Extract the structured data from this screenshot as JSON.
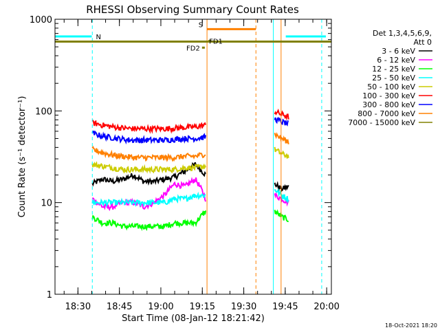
{
  "chart_data": {
    "type": "line",
    "title": "RHESSI Observing Summary Count Rates",
    "xlabel": "Start Time (08-Jan-12 18:21:42)",
    "ylabel": "Count Rate (s⁻¹ detector⁻¹)",
    "yscale": "log",
    "ylim": [
      1,
      1000
    ],
    "xlim": [
      0,
      100
    ],
    "x_ticks": [
      {
        "label": "18:30",
        "t": 8.3
      },
      {
        "label": "18:45",
        "t": 23.3
      },
      {
        "label": "19:00",
        "t": 38.3
      },
      {
        "label": "19:15",
        "t": 53.3
      },
      {
        "label": "19:30",
        "t": 68.3
      },
      {
        "label": "19:45",
        "t": 83.3
      },
      {
        "label": "20:00",
        "t": 98.3
      }
    ],
    "y_ticks": [
      {
        "label": "1",
        "v": 1
      },
      {
        "label": "10",
        "v": 10
      },
      {
        "label": "100",
        "v": 100
      },
      {
        "label": "1000",
        "v": 1000
      }
    ],
    "detector_info": [
      "Det 1,3,4,5,6,9,",
      "Att 0"
    ],
    "segments": [
      [
        13.5,
        54.5
      ],
      [
        79.5,
        84.5
      ]
    ],
    "series": [
      {
        "name": "3 - 6 keV",
        "color": "#000000",
        "values": [
          [
            16,
            18,
            17,
            18,
            20,
            17,
            17,
            18,
            19,
            22,
            26,
            20
          ],
          [
            16,
            14,
            15
          ]
        ]
      },
      {
        "name": "6 - 12 keV",
        "color": "#ff00ff",
        "values": [
          [
            11,
            9,
            9,
            10,
            10,
            9,
            10,
            12,
            16,
            15,
            18,
            11
          ],
          [
            12,
            11,
            10
          ]
        ]
      },
      {
        "name": "12 - 25 keV",
        "color": "#00ff00",
        "values": [
          [
            7,
            6,
            6,
            5.5,
            5.5,
            5.5,
            5.5,
            5.5,
            6,
            6,
            6,
            8
          ],
          [
            8,
            7,
            6.5
          ]
        ]
      },
      {
        "name": "25 - 50 keV",
        "color": "#00ffff",
        "values": [
          [
            10,
            10,
            10,
            10,
            10,
            10,
            10,
            10,
            11,
            11,
            12,
            12
          ],
          [
            14,
            12,
            11
          ]
        ]
      },
      {
        "name": "50 - 100 keV",
        "color": "#cccc00",
        "values": [
          [
            26,
            25,
            24,
            23,
            23,
            23,
            23,
            23,
            23,
            24,
            24,
            25
          ],
          [
            38,
            34,
            32
          ]
        ]
      },
      {
        "name": "100 - 300 keV",
        "color": "#ff0000",
        "values": [
          [
            74,
            70,
            67,
            65,
            64,
            64,
            64,
            64,
            65,
            66,
            67,
            70
          ],
          [
            98,
            92,
            86
          ]
        ]
      },
      {
        "name": "300 - 800 keV",
        "color": "#0000ff",
        "values": [
          [
            57,
            53,
            51,
            49,
            48,
            48,
            48,
            48,
            49,
            50,
            50,
            52
          ],
          [
            82,
            76,
            72
          ]
        ]
      },
      {
        "name": "800 - 7000 keV",
        "color": "#ff8000",
        "values": [
          [
            38,
            35,
            33,
            32,
            31,
            31,
            31,
            31,
            31,
            32,
            32,
            34
          ],
          [
            56,
            50,
            46
          ]
        ]
      },
      {
        "name": "7000 - 15000 keV",
        "color": "#808000",
        "values": [
          [
            null
          ],
          [
            null
          ]
        ]
      }
    ],
    "flags": [
      {
        "label": "N",
        "color": "#00ffff",
        "value": 650,
        "segments": [
          [
            0,
            13.3
          ],
          [
            83.5,
            98
          ]
        ]
      },
      {
        "label": "S",
        "color": "#ff8000",
        "value": 780,
        "segments": [
          [
            55,
            72.7
          ]
        ]
      },
      {
        "label": "FD1",
        "color": "#808000",
        "value": 580,
        "segments": [
          [
            55.5,
            56.5
          ]
        ]
      },
      {
        "label": "FD2",
        "color": "#808000",
        "value": 490,
        "segments": [
          [
            53.2,
            54.2
          ]
        ]
      }
    ],
    "attenuator_line": {
      "color": "#808000",
      "value": 570
    },
    "vlines": [
      {
        "t": 0.0,
        "color": "#00ffff",
        "dashed": false
      },
      {
        "t": 13.5,
        "color": "#00ffff",
        "dashed": true
      },
      {
        "t": 55.0,
        "color": "#ff8000",
        "dashed": false
      },
      {
        "t": 72.7,
        "color": "#ff8000",
        "dashed": true
      },
      {
        "t": 79.0,
        "color": "#00ffff",
        "dashed": false
      },
      {
        "t": 81.8,
        "color": "#ff8000",
        "dashed": false
      },
      {
        "t": 96.5,
        "color": "#00ffff",
        "dashed": true
      }
    ]
  },
  "footer": {
    "timestamp": "18-Oct-2021 18:20"
  }
}
